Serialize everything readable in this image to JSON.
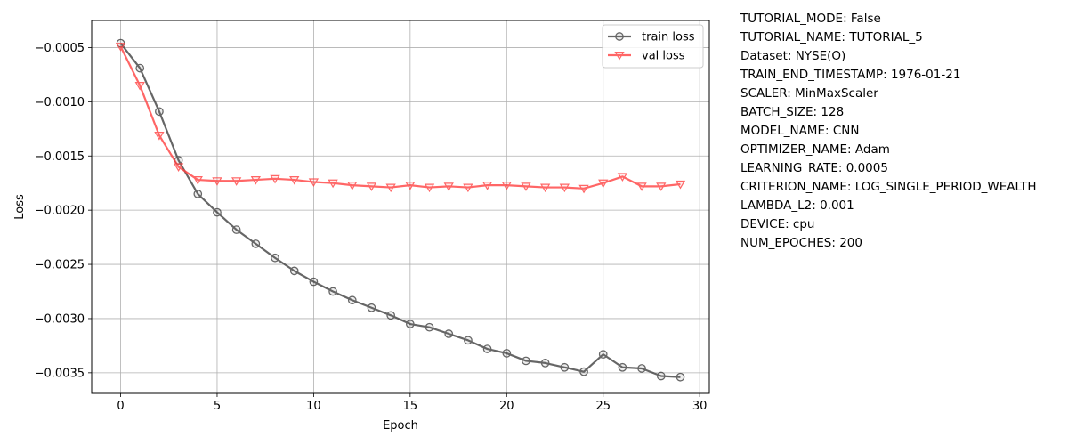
{
  "chart_data": {
    "type": "line",
    "xlabel": "Epoch",
    "ylabel": "Loss",
    "xlim": [
      -1.5,
      30.5
    ],
    "ylim": [
      -0.00369,
      -0.00025
    ],
    "xticks": [
      0,
      5,
      10,
      15,
      20,
      25,
      30
    ],
    "xtick_labels": [
      "0",
      "5",
      "10",
      "15",
      "20",
      "25",
      "30"
    ],
    "yticks": [
      -0.0005,
      -0.001,
      -0.0015,
      -0.002,
      -0.0025,
      -0.003,
      -0.0035
    ],
    "ytick_labels": [
      "−0.0005",
      "−0.0010",
      "−0.0015",
      "−0.0020",
      "−0.0025",
      "−0.0030",
      "−0.0035"
    ],
    "grid": true,
    "legend_position": "top-right",
    "x": [
      0,
      1,
      2,
      3,
      4,
      5,
      6,
      7,
      8,
      9,
      10,
      11,
      12,
      13,
      14,
      15,
      16,
      17,
      18,
      19,
      20,
      21,
      22,
      23,
      24,
      25,
      26,
      27,
      28,
      29
    ],
    "series": [
      {
        "name": "train loss",
        "color": "#404040",
        "marker": "circle",
        "values": [
          -0.00046,
          -0.00069,
          -0.00109,
          -0.00154,
          -0.00185,
          -0.00202,
          -0.00218,
          -0.00231,
          -0.00244,
          -0.00256,
          -0.00266,
          -0.00275,
          -0.00283,
          -0.0029,
          -0.00297,
          -0.00305,
          -0.00308,
          -0.00314,
          -0.0032,
          -0.00328,
          -0.00332,
          -0.00339,
          -0.00341,
          -0.00345,
          -0.00349,
          -0.00333,
          -0.00345,
          -0.00346,
          -0.00353,
          -0.00354
        ]
      },
      {
        "name": "val loss",
        "color": "#ff4040",
        "marker": "triangle-down",
        "values": [
          -0.00049,
          -0.00085,
          -0.00131,
          -0.0016,
          -0.00172,
          -0.00173,
          -0.00173,
          -0.00172,
          -0.00171,
          -0.00172,
          -0.00174,
          -0.00175,
          -0.00177,
          -0.00178,
          -0.00179,
          -0.00177,
          -0.00179,
          -0.00178,
          -0.00179,
          -0.00177,
          -0.00177,
          -0.00178,
          -0.00179,
          -0.00179,
          -0.0018,
          -0.00175,
          -0.00169,
          -0.00178,
          -0.00178,
          -0.00176
        ]
      }
    ]
  },
  "info": [
    "TUTORIAL_MODE: False",
    "TUTORIAL_NAME: TUTORIAL_5",
    "Dataset: NYSE(O)",
    "TRAIN_END_TIMESTAMP: 1976-01-21",
    "SCALER: MinMaxScaler",
    "BATCH_SIZE: 128",
    "MODEL_NAME: CNN",
    "OPTIMIZER_NAME: Adam",
    "LEARNING_RATE: 0.0005",
    "CRITERION_NAME: LOG_SINGLE_PERIOD_WEALTH",
    "LAMBDA_L2: 0.001",
    "DEVICE: cpu",
    "NUM_EPOCHES: 200"
  ]
}
